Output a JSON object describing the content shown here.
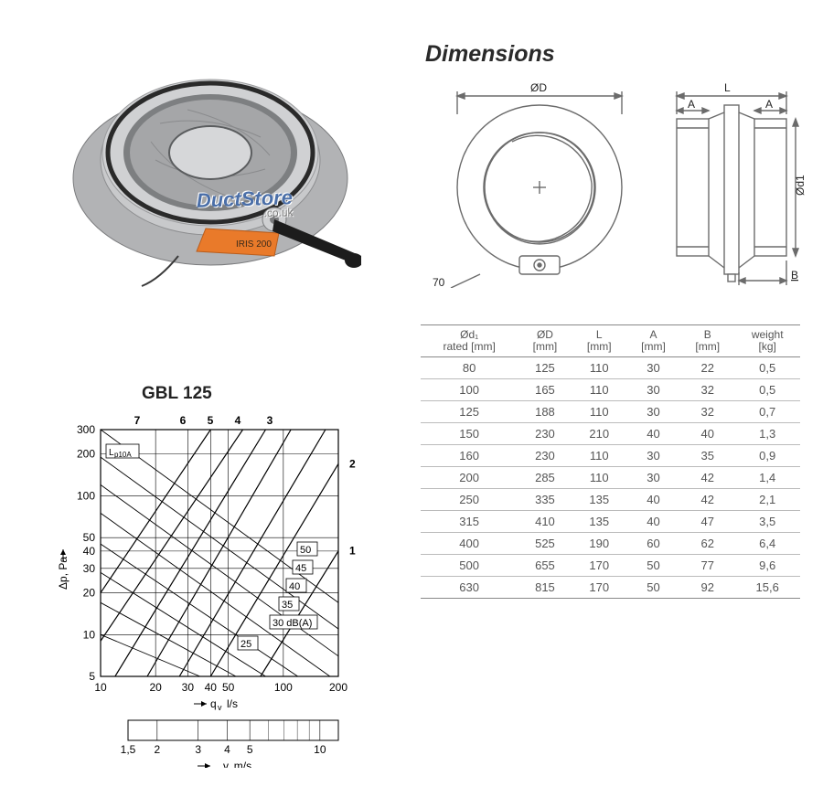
{
  "product": {
    "watermark": "DuctStore",
    "watermark_sub": ".co.uk",
    "model_label": "IRIS 200",
    "body_color": "#c8c9cb",
    "flange_color": "#b2b3b5",
    "iris_color": "#a5a6a8",
    "gasket_color": "#2a2a2a",
    "handle_plate_color": "#e97a2a",
    "lever_color": "#1c1c1c"
  },
  "dimensions_section": {
    "heading": "Dimensions",
    "drawing_labels": {
      "OD": "ØD",
      "L": "L",
      "A": "A",
      "Od1": "Ød1",
      "B": "B",
      "seventy": "70"
    },
    "stroke": "#6b6b6b",
    "fill": "#ffffff"
  },
  "table": {
    "columns": [
      {
        "top": "Ød₁",
        "unit": "rated [mm]"
      },
      {
        "top": "ØD",
        "unit": "[mm]"
      },
      {
        "top": "L",
        "unit": "[mm]"
      },
      {
        "top": "A",
        "unit": "[mm]"
      },
      {
        "top": "B",
        "unit": "[mm]"
      },
      {
        "top": "weight",
        "unit": "[kg]"
      }
    ],
    "rows": [
      [
        "80",
        "125",
        "110",
        "30",
        "22",
        "0,5"
      ],
      [
        "100",
        "165",
        "110",
        "30",
        "32",
        "0,5"
      ],
      [
        "125",
        "188",
        "110",
        "30",
        "32",
        "0,7"
      ],
      [
        "150",
        "230",
        "210",
        "40",
        "40",
        "1,3"
      ],
      [
        "160",
        "230",
        "110",
        "30",
        "35",
        "0,9"
      ],
      [
        "200",
        "285",
        "110",
        "30",
        "42",
        "1,4"
      ],
      [
        "250",
        "335",
        "135",
        "40",
        "42",
        "2,1"
      ],
      [
        "315",
        "410",
        "135",
        "40",
        "47",
        "3,5"
      ],
      [
        "400",
        "525",
        "190",
        "60",
        "62",
        "6,4"
      ],
      [
        "500",
        "655",
        "170",
        "50",
        "77",
        "9,6"
      ],
      [
        "630",
        "815",
        "170",
        "50",
        "92",
        "15,6"
      ]
    ],
    "header_border": "#888888",
    "row_border": "#bbbbbb",
    "text_color": "#555555",
    "fontsize": 13
  },
  "chart": {
    "title": "GBL 125",
    "type": "log-log-nomograph",
    "x_axis_top": {
      "label": "q_v l/s",
      "ticks": [
        10,
        20,
        30,
        40,
        50,
        100,
        200
      ],
      "min": 10,
      "max": 200
    },
    "x_axis_bottom": {
      "label": "v, m/s",
      "ticks": [
        1.5,
        2,
        3,
        4,
        5,
        10
      ],
      "tick_labels": [
        "1,5",
        "2",
        "3",
        "4",
        "5",
        "10"
      ]
    },
    "y_axis": {
      "label": "Δp, Pa",
      "ticks": [
        5,
        10,
        20,
        30,
        40,
        50,
        100,
        200,
        300
      ],
      "min": 5,
      "max": 300
    },
    "top_setting_labels": [
      "7",
      "6",
      "5",
      "4",
      "3"
    ],
    "right_setting_labels": [
      "2",
      "1"
    ],
    "boxed_db_labels": [
      "50",
      "45",
      "40",
      "35",
      "30 dB(A)",
      "25"
    ],
    "lp_label": "L_p10A",
    "grid_color": "#000000",
    "line_color": "#000000",
    "background_color": "#ffffff",
    "line_width": 1,
    "title_fontsize": 19,
    "tick_fontsize": 12
  }
}
